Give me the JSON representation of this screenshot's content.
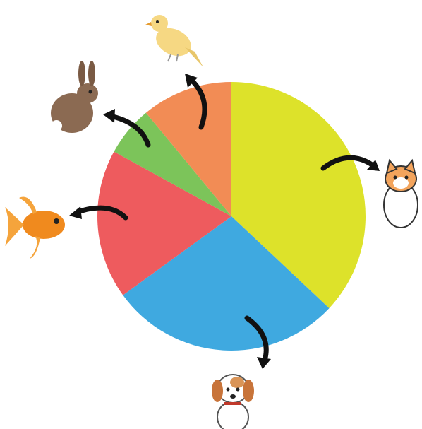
{
  "chart_data": {
    "type": "pie",
    "values": [
      37,
      28,
      18,
      6,
      11
    ],
    "colors": [
      "#dde22a",
      "#3fa9e0",
      "#ee5b5e",
      "#7cc45a",
      "#f28c55"
    ],
    "start_angle": 0,
    "direction": "clockwise"
  }
}
